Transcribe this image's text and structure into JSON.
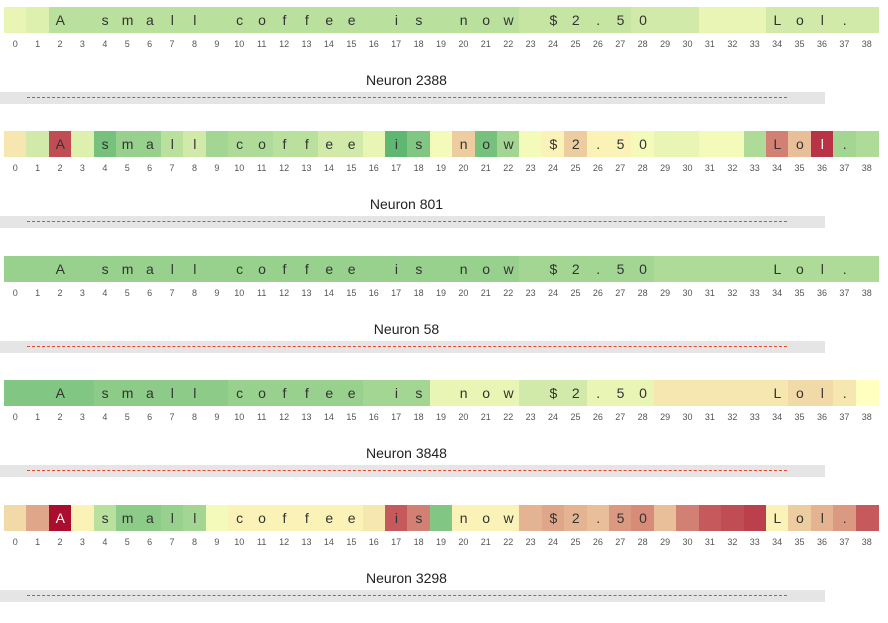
{
  "chart_data": {
    "type": "heatmap",
    "tokens": [
      "",
      "",
      "A",
      "",
      "s",
      "m",
      "a",
      "l",
      "l",
      "",
      "c",
      "o",
      "f",
      "f",
      "e",
      "e",
      "",
      "i",
      "s",
      "",
      "n",
      "o",
      "w",
      "",
      "$",
      "2",
      ".",
      "5",
      "0",
      "",
      "",
      "",
      "",
      "",
      "L",
      "o",
      "l",
      ".",
      ""
    ],
    "positions": [
      0,
      1,
      2,
      3,
      4,
      5,
      6,
      7,
      8,
      9,
      10,
      11,
      12,
      13,
      14,
      15,
      16,
      17,
      18,
      19,
      20,
      21,
      22,
      23,
      24,
      25,
      26,
      27,
      28,
      29,
      30,
      31,
      32,
      33,
      34,
      35,
      36,
      37,
      38
    ],
    "color_scale": {
      "negative": "#1a9850",
      "neutral": "#ffffbf",
      "positive": "#a50026",
      "range": [
        -1,
        1
      ]
    },
    "neurons": [
      {
        "title": "Neuron 2388",
        "values": [
          -0.1,
          -0.15,
          -0.3,
          -0.3,
          -0.3,
          -0.3,
          -0.3,
          -0.3,
          -0.3,
          -0.3,
          -0.3,
          -0.3,
          -0.3,
          -0.3,
          -0.3,
          -0.3,
          -0.3,
          -0.3,
          -0.3,
          -0.3,
          -0.3,
          -0.3,
          -0.3,
          -0.25,
          -0.25,
          -0.25,
          -0.25,
          -0.25,
          -0.2,
          -0.2,
          -0.2,
          -0.1,
          -0.1,
          -0.1,
          -0.2,
          -0.2,
          -0.2,
          -0.2,
          -0.2
        ]
      },
      {
        "title": "Neuron 801",
        "values": [
          0.1,
          -0.2,
          0.7,
          -0.15,
          -0.6,
          -0.45,
          -0.45,
          -0.3,
          -0.2,
          -0.4,
          -0.35,
          -0.35,
          -0.3,
          -0.3,
          -0.2,
          -0.2,
          -0.1,
          -0.7,
          -0.55,
          -0.05,
          0.2,
          -0.6,
          -0.4,
          -0.05,
          0.05,
          0.2,
          0.05,
          0.05,
          -0.05,
          -0.1,
          -0.1,
          -0.05,
          -0.05,
          -0.35,
          0.5,
          0.25,
          0.8,
          -0.4,
          -0.35
        ]
      },
      {
        "title": "Neuron 58",
        "values": [
          -0.45,
          -0.45,
          -0.45,
          -0.45,
          -0.45,
          -0.45,
          -0.45,
          -0.45,
          -0.45,
          -0.45,
          -0.45,
          -0.45,
          -0.45,
          -0.45,
          -0.45,
          -0.45,
          -0.45,
          -0.45,
          -0.45,
          -0.45,
          -0.45,
          -0.45,
          -0.45,
          -0.4,
          -0.4,
          -0.4,
          -0.4,
          -0.4,
          -0.4,
          -0.35,
          -0.35,
          -0.35,
          -0.35,
          -0.35,
          -0.35,
          -0.35,
          -0.35,
          -0.35,
          -0.35
        ]
      },
      {
        "title": "Neuron 3848",
        "values": [
          -0.55,
          -0.55,
          -0.55,
          -0.55,
          -0.5,
          -0.5,
          -0.5,
          -0.5,
          -0.5,
          -0.5,
          -0.45,
          -0.45,
          -0.45,
          -0.45,
          -0.45,
          -0.45,
          -0.4,
          -0.4,
          -0.4,
          -0.1,
          -0.1,
          -0.1,
          -0.1,
          -0.2,
          -0.2,
          -0.2,
          -0.1,
          -0.1,
          -0.1,
          0.1,
          0.1,
          0.1,
          0.1,
          0.1,
          0.1,
          0.15,
          0.15,
          0.1,
          0.0
        ]
      },
      {
        "title": "Neuron 3298",
        "values": [
          0.15,
          0.35,
          0.95,
          0.05,
          -0.3,
          -0.5,
          -0.5,
          -0.45,
          -0.4,
          -0.05,
          0.05,
          0.05,
          0.05,
          0.05,
          0.05,
          0.05,
          0.1,
          0.65,
          0.5,
          -0.55,
          0.05,
          0.05,
          0.05,
          0.3,
          0.35,
          0.3,
          0.25,
          0.4,
          0.45,
          0.25,
          0.5,
          0.65,
          0.7,
          0.75,
          0.05,
          0.2,
          0.3,
          0.4,
          0.65
        ]
      }
    ]
  }
}
